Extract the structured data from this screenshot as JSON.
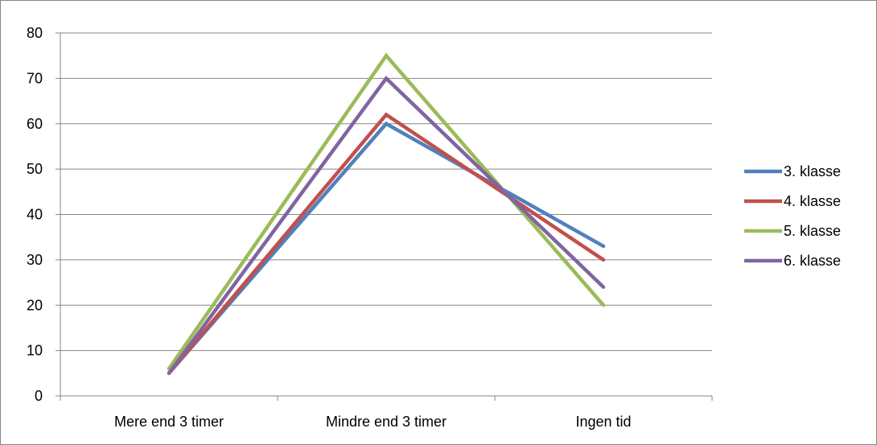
{
  "chart_data": {
    "type": "line",
    "title": "",
    "xlabel": "",
    "ylabel": "",
    "categories": [
      "Mere end 3 timer",
      "Mindre end 3 timer",
      "Ingen tid"
    ],
    "ylim": [
      0,
      80
    ],
    "yticks": [
      0,
      10,
      20,
      30,
      40,
      50,
      60,
      70,
      80
    ],
    "grid": true,
    "legend_position": "right",
    "series": [
      {
        "name": "3. klasse",
        "color": "#4f81bd",
        "values": [
          5,
          60,
          33
        ]
      },
      {
        "name": "4. klasse",
        "color": "#c0504d",
        "values": [
          5,
          62,
          30
        ]
      },
      {
        "name": "5. klasse",
        "color": "#9bbb59",
        "values": [
          6,
          75,
          20
        ]
      },
      {
        "name": "6. klasse",
        "color": "#8064a2",
        "values": [
          5,
          70,
          24
        ]
      }
    ]
  }
}
